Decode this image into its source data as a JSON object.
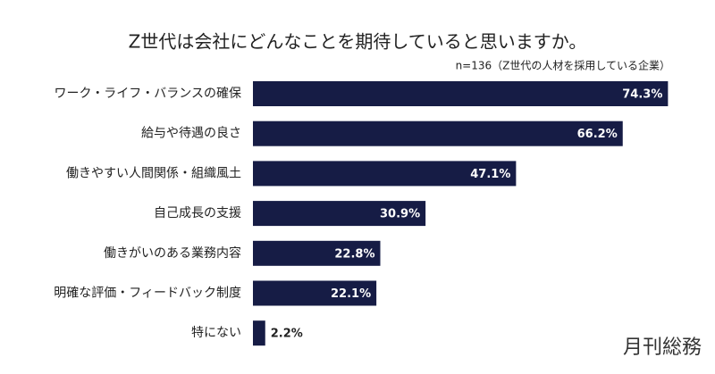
{
  "chart_data": {
    "type": "bar",
    "orientation": "horizontal",
    "title": "Z世代は会社にどんなことを期待していると思いますか。",
    "subtitle": "n=136（Z世代の人材を採用している企業）",
    "categories": [
      "ワーク・ライフ・バランスの確保",
      "給与や待遇の良さ",
      "働きやすい人間関係・組織風土",
      "自己成長の支援",
      "働きがいのある業務内容",
      "明確な評価・フィードバック制度",
      "特にない"
    ],
    "values": [
      74.3,
      66.2,
      47.1,
      30.9,
      22.8,
      22.1,
      2.2
    ],
    "value_labels": [
      "74.3%",
      "66.2%",
      "47.1%",
      "30.9%",
      "22.8%",
      "22.1%",
      "2.2%"
    ],
    "color": "#161c45",
    "xlim": [
      0,
      80
    ],
    "source": "月刊総務"
  }
}
